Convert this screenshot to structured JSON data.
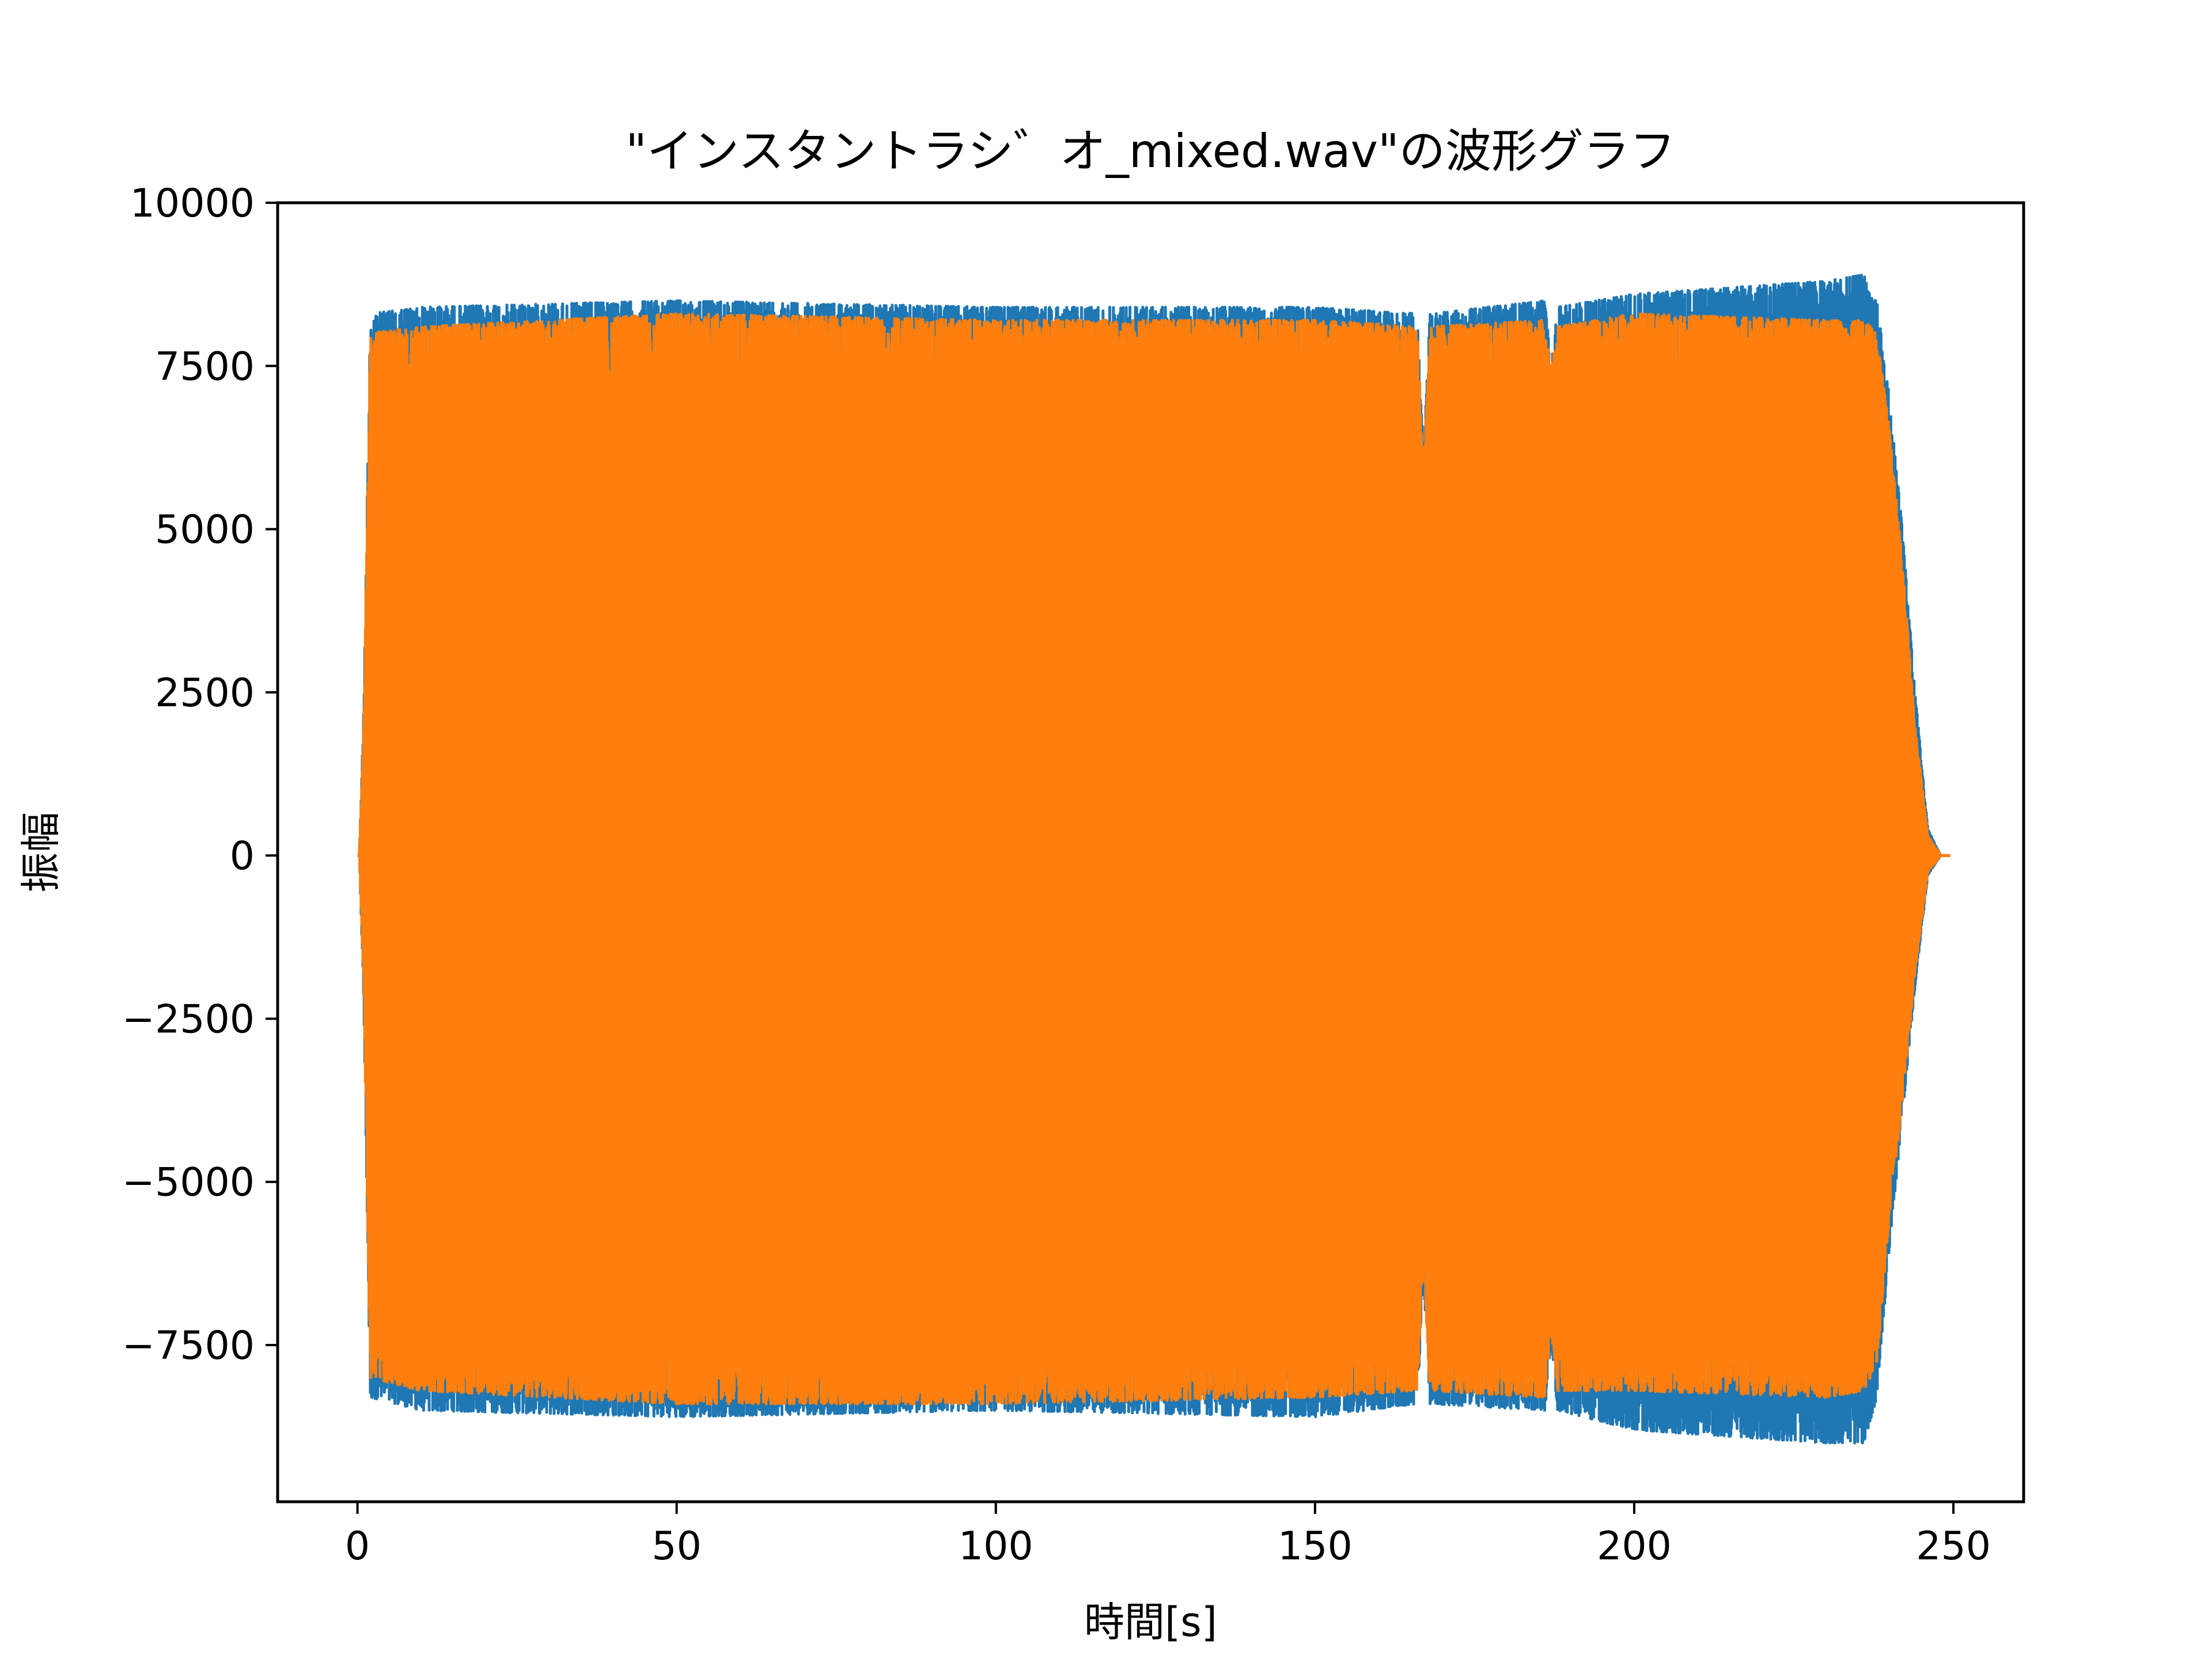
{
  "chart_data": {
    "type": "line",
    "title": "\"インスタントラシ゛オ_mixed.wav\"の波形グラフ",
    "xlabel": "時間[s]",
    "ylabel": "振幅",
    "xlim": [
      -12.5,
      261
    ],
    "ylim": [
      -9900,
      10000
    ],
    "xticks": [
      0,
      50,
      100,
      150,
      200,
      250
    ],
    "xtick_labels": [
      "0",
      "50",
      "100",
      "150",
      "200",
      "250"
    ],
    "yticks": [
      10000,
      7500,
      5000,
      2500,
      0,
      -2500,
      -5000,
      -7500
    ],
    "ytick_labels": [
      "10000",
      "7500",
      "5000",
      "2500",
      "0",
      "−2500",
      "−5000",
      "−7500"
    ],
    "grid": false,
    "legend": "none",
    "series": [
      {
        "color": "#1f77b4",
        "envelope": {
          "t": [
            0,
            0.3,
            1,
            2,
            10,
            50,
            100,
            150,
            166,
            167,
            168,
            186,
            187,
            188,
            200,
            230,
            236,
            238,
            240,
            242,
            244,
            246,
            248,
            249.5
          ],
          "max": [
            0,
            0,
            2300,
            8300,
            8400,
            8500,
            8400,
            8400,
            8300,
            6100,
            8300,
            8500,
            7500,
            8400,
            8600,
            8800,
            8900,
            8500,
            7000,
            5000,
            2500,
            400,
            0,
            0
          ],
          "min": [
            0,
            0,
            -2300,
            -8300,
            -8500,
            -8600,
            -8500,
            -8600,
            -8400,
            -6500,
            -8400,
            -8500,
            -7500,
            -8500,
            -8800,
            -9000,
            -9000,
            -8300,
            -6000,
            -4000,
            -2000,
            -300,
            0,
            0
          ]
        }
      },
      {
        "color": "#ff7f0e",
        "envelope": {
          "t": [
            0,
            0.3,
            1,
            2,
            10,
            50,
            100,
            150,
            166,
            167,
            168,
            186,
            187,
            188,
            200,
            230,
            236,
            238,
            240,
            242,
            244,
            246,
            248,
            249.5
          ],
          "max": [
            0,
            0,
            2000,
            8000,
            8100,
            8300,
            8200,
            8200,
            8100,
            6000,
            8100,
            8200,
            7400,
            8100,
            8300,
            8200,
            8200,
            8000,
            6500,
            4500,
            2000,
            300,
            0,
            0
          ],
          "min": [
            0,
            0,
            -2000,
            -8000,
            -8200,
            -8400,
            -8400,
            -8300,
            -8200,
            -6300,
            -8200,
            -8300,
            -7300,
            -8200,
            -8200,
            -8300,
            -8200,
            -7800,
            -5500,
            -3800,
            -1800,
            -250,
            0,
            0
          ]
        }
      }
    ]
  }
}
